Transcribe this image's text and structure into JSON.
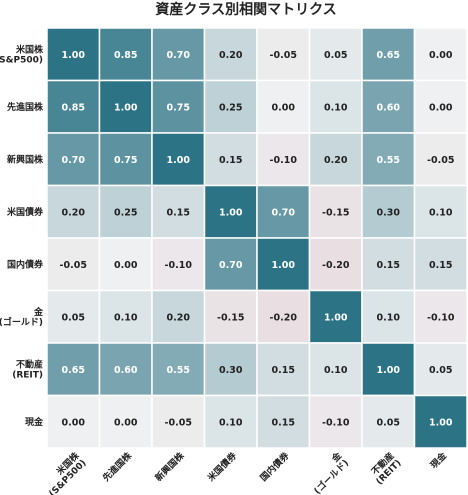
{
  "chart_data": {
    "type": "heatmap",
    "title": "資産クラス別相関マトリクス",
    "row_labels": [
      [
        "米国株",
        "(S&P500)"
      ],
      [
        "先進国株"
      ],
      [
        "新興国株"
      ],
      [
        "米国債券"
      ],
      [
        "国内債券"
      ],
      [
        "金",
        "(ゴールド)"
      ],
      [
        "不動産",
        "(REIT)"
      ],
      [
        "現金"
      ]
    ],
    "col_labels": [
      [
        "米国株",
        "(S&P500)"
      ],
      [
        "先進国株"
      ],
      [
        "新興国株"
      ],
      [
        "米国債券"
      ],
      [
        "国内債券"
      ],
      [
        "金",
        "(ゴールド)"
      ],
      [
        "不動産",
        "(REIT)"
      ],
      [
        "現金"
      ]
    ],
    "values": [
      [
        1.0,
        0.85,
        0.7,
        0.2,
        -0.05,
        0.05,
        0.65,
        0.0
      ],
      [
        0.85,
        1.0,
        0.75,
        0.25,
        0.0,
        0.1,
        0.6,
        0.0
      ],
      [
        0.7,
        0.75,
        1.0,
        0.15,
        -0.1,
        0.2,
        0.55,
        -0.05
      ],
      [
        0.2,
        0.25,
        0.15,
        1.0,
        0.7,
        -0.15,
        0.3,
        0.1
      ],
      [
        -0.05,
        0.0,
        -0.1,
        0.7,
        1.0,
        -0.2,
        0.15,
        0.15
      ],
      [
        0.05,
        0.1,
        0.2,
        -0.15,
        -0.2,
        1.0,
        0.1,
        -0.1
      ],
      [
        0.65,
        0.6,
        0.55,
        0.3,
        0.15,
        0.1,
        1.0,
        0.05
      ],
      [
        0.0,
        0.0,
        -0.05,
        0.1,
        0.15,
        -0.1,
        0.05,
        1.0
      ]
    ],
    "value_format": "0.00",
    "color_range": [
      -1,
      1
    ],
    "colors": {
      "positive": "#2c7385",
      "neutral": "#eef0f1",
      "negative": "#d39aa6",
      "light_text": "#ffffff",
      "dark_text": "#222222",
      "grid": "#ffffff"
    },
    "legend": "none",
    "grid": true
  }
}
